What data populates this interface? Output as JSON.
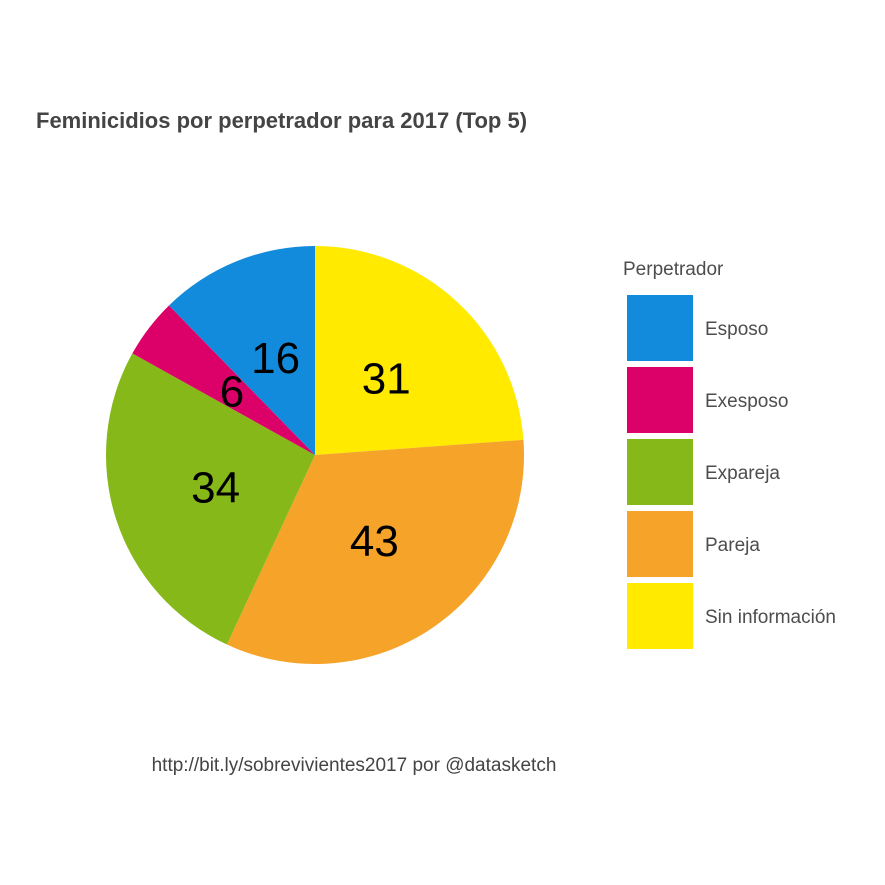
{
  "chart_data": {
    "type": "pie",
    "title": "Feminicidios por perpetrador para 2017 (Top 5)",
    "legend_title": "Perpetrador",
    "legend_position": "right",
    "caption": "http://bit.ly/sobrevivientes2017 por @datasketch",
    "slices": [
      {
        "label": "Esposo",
        "value": 16,
        "color": "#138bdc"
      },
      {
        "label": "Exesposo",
        "value": 6,
        "color": "#dc0069"
      },
      {
        "label": "Expareja",
        "value": 34,
        "color": "#85b818"
      },
      {
        "label": "Pareja",
        "value": 43,
        "color": "#f6a32a"
      },
      {
        "label": "Sin información",
        "value": 31,
        "color": "#ffea00"
      }
    ],
    "drawing_order": [
      "Sin información",
      "Pareja",
      "Expareja",
      "Exesposo",
      "Esposo"
    ]
  }
}
